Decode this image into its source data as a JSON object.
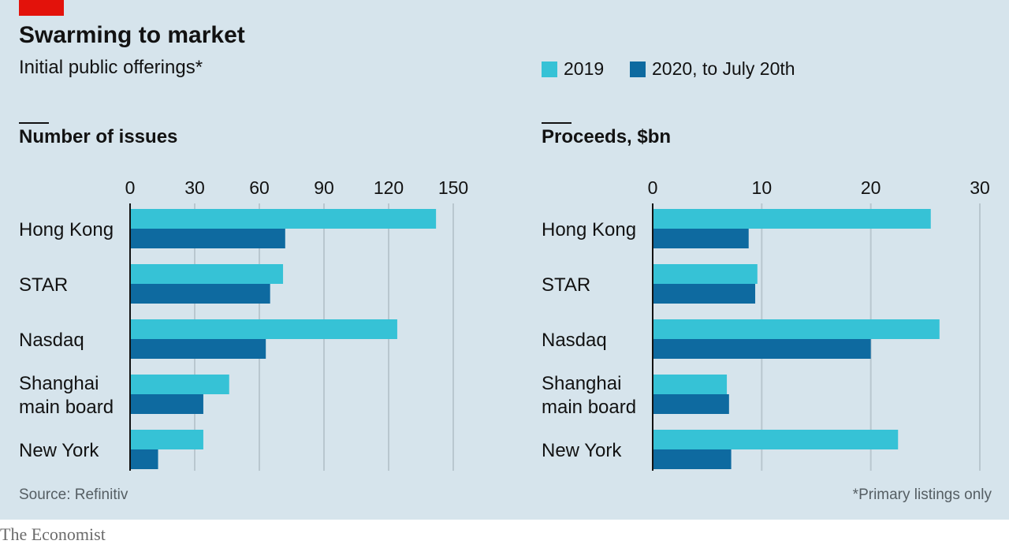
{
  "header": {
    "title": "Swarming to market",
    "subtitle": "Initial public offerings*",
    "legend": [
      {
        "label": "2019",
        "color": "#36c2d6"
      },
      {
        "label": "2020, to July 20th",
        "color": "#0e6aa0"
      }
    ]
  },
  "footer": {
    "source": "Source: Refinitiv",
    "note": "*Primary listings only",
    "brand": "The Economist"
  },
  "chart_data": [
    {
      "type": "bar",
      "orientation": "horizontal",
      "title": "Number of issues",
      "categories": [
        "Hong Kong",
        "STAR",
        "Nasdaq",
        "Shanghai main board",
        "New York"
      ],
      "category_lines": [
        [
          "Hong Kong"
        ],
        [
          "STAR"
        ],
        [
          "Nasdaq"
        ],
        [
          "Shanghai",
          "main board"
        ],
        [
          "New York"
        ]
      ],
      "series": [
        {
          "name": "2019",
          "values": [
            142,
            71,
            124,
            46,
            34
          ],
          "color": "#36c2d6"
        },
        {
          "name": "2020, to July 20th",
          "values": [
            72,
            65,
            63,
            34,
            13
          ],
          "color": "#0e6aa0"
        }
      ],
      "xlim": [
        0,
        150
      ],
      "ticks": [
        0,
        30,
        60,
        90,
        120,
        150
      ],
      "grid": true
    },
    {
      "type": "bar",
      "orientation": "horizontal",
      "title": "Proceeds, $bn",
      "categories": [
        "Hong Kong",
        "STAR",
        "Nasdaq",
        "Shanghai main board",
        "New York"
      ],
      "category_lines": [
        [
          "Hong Kong"
        ],
        [
          "STAR"
        ],
        [
          "Nasdaq"
        ],
        [
          "Shanghai",
          "main board"
        ],
        [
          "New York"
        ]
      ],
      "series": [
        {
          "name": "2019",
          "values": [
            25.5,
            9.6,
            26.3,
            6.8,
            22.5
          ],
          "color": "#36c2d6"
        },
        {
          "name": "2020, to July 20th",
          "values": [
            8.8,
            9.4,
            20.0,
            7.0,
            7.2
          ],
          "color": "#0e6aa0"
        }
      ],
      "xlim": [
        0,
        30
      ],
      "ticks": [
        0,
        10,
        20,
        30
      ],
      "grid": true
    }
  ]
}
